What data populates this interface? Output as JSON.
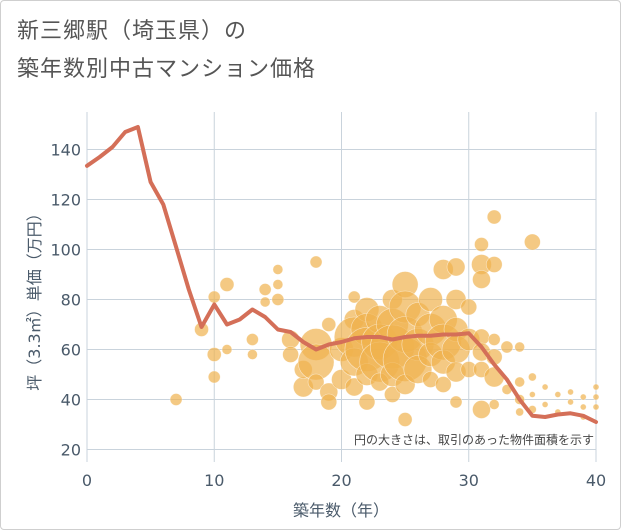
{
  "chart_data": {
    "type": "scatter",
    "title_line1": "新三郷駅（埼玉県）の",
    "title_line2": "築年数別中古マンション価格",
    "xlabel": "築年数（年）",
    "ylabel": "坪（3.3㎡）単価（万円）",
    "xlim": [
      0,
      40
    ],
    "ylim": [
      15,
      155
    ],
    "xticks": [
      0,
      10,
      20,
      30,
      40
    ],
    "yticks": [
      20,
      40,
      60,
      80,
      100,
      120,
      140
    ],
    "grid": true,
    "annotation": "円の大きさは、取引のあった物件面積を示す",
    "colors": {
      "bubble": "#f0b24f",
      "line": "#d46f58",
      "grid": "#c9d3dc",
      "text": "#4a5a6a"
    },
    "series": [
      {
        "type": "line",
        "points": [
          [
            0,
            133.5
          ],
          [
            1,
            137
          ],
          [
            2,
            141
          ],
          [
            3,
            147
          ],
          [
            4,
            149
          ],
          [
            5,
            127
          ],
          [
            6,
            118
          ],
          [
            7,
            101
          ],
          [
            8,
            84
          ],
          [
            9,
            69
          ],
          [
            10,
            78
          ],
          [
            11,
            70
          ],
          [
            12,
            72
          ],
          [
            13,
            76
          ],
          [
            14,
            73
          ],
          [
            15,
            68
          ],
          [
            16,
            67
          ],
          [
            17,
            63
          ],
          [
            18,
            60
          ],
          [
            19,
            62
          ],
          [
            20,
            63
          ],
          [
            21,
            64.5
          ],
          [
            22,
            65
          ],
          [
            23,
            65
          ],
          [
            24,
            64
          ],
          [
            25,
            65
          ],
          [
            26,
            65.5
          ],
          [
            27,
            65.5
          ],
          [
            28,
            66
          ],
          [
            29,
            66
          ],
          [
            30,
            66.5
          ],
          [
            31,
            61
          ],
          [
            32,
            54
          ],
          [
            33,
            48
          ],
          [
            34,
            40
          ],
          [
            35,
            33.5
          ],
          [
            36,
            33
          ],
          [
            37,
            34
          ],
          [
            38,
            34.5
          ],
          [
            39,
            33.5
          ],
          [
            40,
            31
          ]
        ]
      },
      {
        "type": "scatter",
        "points": [
          [
            7,
            40,
            6
          ],
          [
            9,
            68,
            7
          ],
          [
            10,
            81,
            6
          ],
          [
            10,
            58,
            7
          ],
          [
            10,
            49,
            6
          ],
          [
            11,
            86,
            7
          ],
          [
            11,
            60,
            5
          ],
          [
            13,
            64,
            6
          ],
          [
            13,
            58,
            5
          ],
          [
            14,
            84,
            6
          ],
          [
            14,
            79,
            5
          ],
          [
            15,
            92,
            5
          ],
          [
            15,
            86,
            5
          ],
          [
            15,
            80,
            6
          ],
          [
            16,
            64,
            9
          ],
          [
            16,
            58,
            8
          ],
          [
            17,
            45,
            10
          ],
          [
            17,
            52,
            9
          ],
          [
            18,
            95,
            6
          ],
          [
            18,
            62,
            16
          ],
          [
            18,
            55,
            18
          ],
          [
            18,
            47,
            8
          ],
          [
            19,
            70,
            7
          ],
          [
            19,
            43,
            9
          ],
          [
            19,
            39,
            8
          ],
          [
            20,
            60,
            12
          ],
          [
            20,
            48,
            10
          ],
          [
            21,
            81,
            6
          ],
          [
            21,
            72,
            10
          ],
          [
            21,
            65,
            20
          ],
          [
            21,
            55,
            14
          ],
          [
            21,
            45,
            9
          ],
          [
            22,
            76,
            12
          ],
          [
            22,
            68,
            16
          ],
          [
            22,
            60,
            22
          ],
          [
            22,
            50,
            11
          ],
          [
            22,
            39,
            8
          ],
          [
            23,
            72,
            14
          ],
          [
            23,
            63,
            18
          ],
          [
            23,
            55,
            20
          ],
          [
            23,
            47,
            9
          ],
          [
            24,
            80,
            10
          ],
          [
            24,
            70,
            16
          ],
          [
            24,
            61,
            22
          ],
          [
            24,
            50,
            12
          ],
          [
            24,
            42,
            8
          ],
          [
            25,
            86,
            13
          ],
          [
            25,
            77,
            16
          ],
          [
            25,
            66,
            18
          ],
          [
            25,
            56,
            22
          ],
          [
            25,
            46,
            10
          ],
          [
            25,
            32,
            7
          ],
          [
            26,
            74,
            12
          ],
          [
            26,
            62,
            16
          ],
          [
            26,
            52,
            14
          ],
          [
            27,
            80,
            12
          ],
          [
            27,
            68,
            16
          ],
          [
            27,
            58,
            12
          ],
          [
            27,
            48,
            8
          ],
          [
            28,
            92,
            10
          ],
          [
            28,
            72,
            14
          ],
          [
            28,
            63,
            18
          ],
          [
            28,
            55,
            12
          ],
          [
            28,
            46,
            8
          ],
          [
            29,
            93,
            9
          ],
          [
            29,
            80,
            10
          ],
          [
            29,
            68,
            12
          ],
          [
            29,
            60,
            14
          ],
          [
            29,
            51,
            10
          ],
          [
            29,
            39,
            6
          ],
          [
            30,
            77,
            8
          ],
          [
            30,
            64,
            11
          ],
          [
            30,
            52,
            8
          ],
          [
            31,
            102,
            7
          ],
          [
            31,
            94,
            10
          ],
          [
            31,
            88,
            9
          ],
          [
            31,
            65,
            8
          ],
          [
            31,
            59,
            9
          ],
          [
            31,
            52,
            8
          ],
          [
            31,
            36,
            9
          ],
          [
            32,
            113,
            7
          ],
          [
            32,
            94,
            8
          ],
          [
            32,
            64,
            6
          ],
          [
            32,
            57,
            8
          ],
          [
            32,
            49,
            10
          ],
          [
            32,
            38,
            5
          ],
          [
            33,
            61,
            6
          ],
          [
            33,
            44,
            5
          ],
          [
            34,
            61,
            5
          ],
          [
            34,
            47,
            5
          ],
          [
            34,
            40,
            5
          ],
          [
            34,
            35,
            4
          ],
          [
            35,
            103,
            8
          ],
          [
            35,
            49,
            4
          ],
          [
            35,
            42,
            3
          ],
          [
            35,
            36,
            4
          ],
          [
            36,
            45,
            3
          ],
          [
            36,
            38,
            3
          ],
          [
            37,
            42,
            3
          ],
          [
            37,
            35,
            3
          ],
          [
            38,
            43,
            3
          ],
          [
            38,
            39,
            3
          ],
          [
            39,
            41,
            3
          ],
          [
            39,
            37,
            3
          ],
          [
            39,
            33,
            3
          ],
          [
            40,
            45,
            3
          ],
          [
            40,
            41,
            3
          ],
          [
            40,
            37,
            3
          ]
        ]
      }
    ]
  }
}
